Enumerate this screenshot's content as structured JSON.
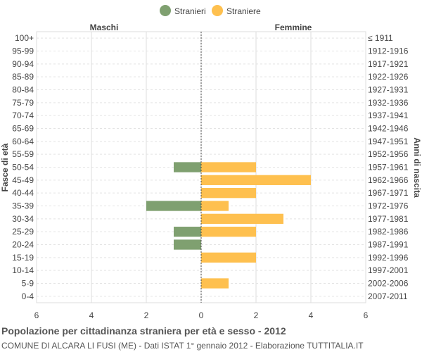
{
  "chart_data": {
    "type": "bar",
    "orientation": "horizontal-population-pyramid",
    "legend": {
      "placement": "top-center",
      "items": [
        {
          "label": "Stranieri",
          "color": "#7fa070"
        },
        {
          "label": "Straniere",
          "color": "#fec04f"
        }
      ]
    },
    "left_header": "Maschi",
    "right_header": "Femmine",
    "ylabel_left": "Fasce di età",
    "ylabel_right": "Anni di nascita",
    "xlim": [
      -6,
      6
    ],
    "x_ticks": [
      {
        "value": -6,
        "label": "6"
      },
      {
        "value": -4,
        "label": "4"
      },
      {
        "value": -2,
        "label": "2"
      },
      {
        "value": 0,
        "label": "0"
      },
      {
        "value": 2,
        "label": "2"
      },
      {
        "value": 4,
        "label": "4"
      },
      {
        "value": 6,
        "label": "6"
      }
    ],
    "grid": true,
    "categories": [
      "100+",
      "95-99",
      "90-94",
      "85-89",
      "80-84",
      "75-79",
      "70-74",
      "65-69",
      "60-64",
      "55-59",
      "50-54",
      "45-49",
      "40-44",
      "35-39",
      "30-34",
      "25-29",
      "20-24",
      "15-19",
      "10-14",
      "5-9",
      "0-4"
    ],
    "birth_years": [
      "≤ 1911",
      "1912-1916",
      "1917-1921",
      "1922-1926",
      "1927-1931",
      "1932-1936",
      "1937-1941",
      "1942-1946",
      "1947-1951",
      "1952-1956",
      "1957-1961",
      "1962-1966",
      "1967-1971",
      "1972-1976",
      "1977-1981",
      "1982-1986",
      "1987-1991",
      "1992-1996",
      "1997-2001",
      "2002-2006",
      "2007-2011"
    ],
    "series": [
      {
        "name": "Stranieri",
        "color": "#7fa070",
        "values": [
          0,
          0,
          0,
          0,
          0,
          0,
          0,
          0,
          0,
          0,
          1,
          0,
          0,
          2,
          0,
          1,
          1,
          0,
          0,
          0,
          0
        ]
      },
      {
        "name": "Straniere",
        "color": "#fec04f",
        "values": [
          0,
          0,
          0,
          0,
          0,
          0,
          0,
          0,
          0,
          0,
          2,
          4,
          2,
          1,
          3,
          2,
          0,
          2,
          0,
          1,
          0
        ]
      }
    ]
  },
  "footer": {
    "title": "Popolazione per cittadinanza straniera per età e sesso - 2012",
    "subtitle": "COMUNE DI ALCARA LI FUSI (ME) - Dati ISTAT 1° gennaio 2012 - Elaborazione TUTTITALIA.IT"
  }
}
